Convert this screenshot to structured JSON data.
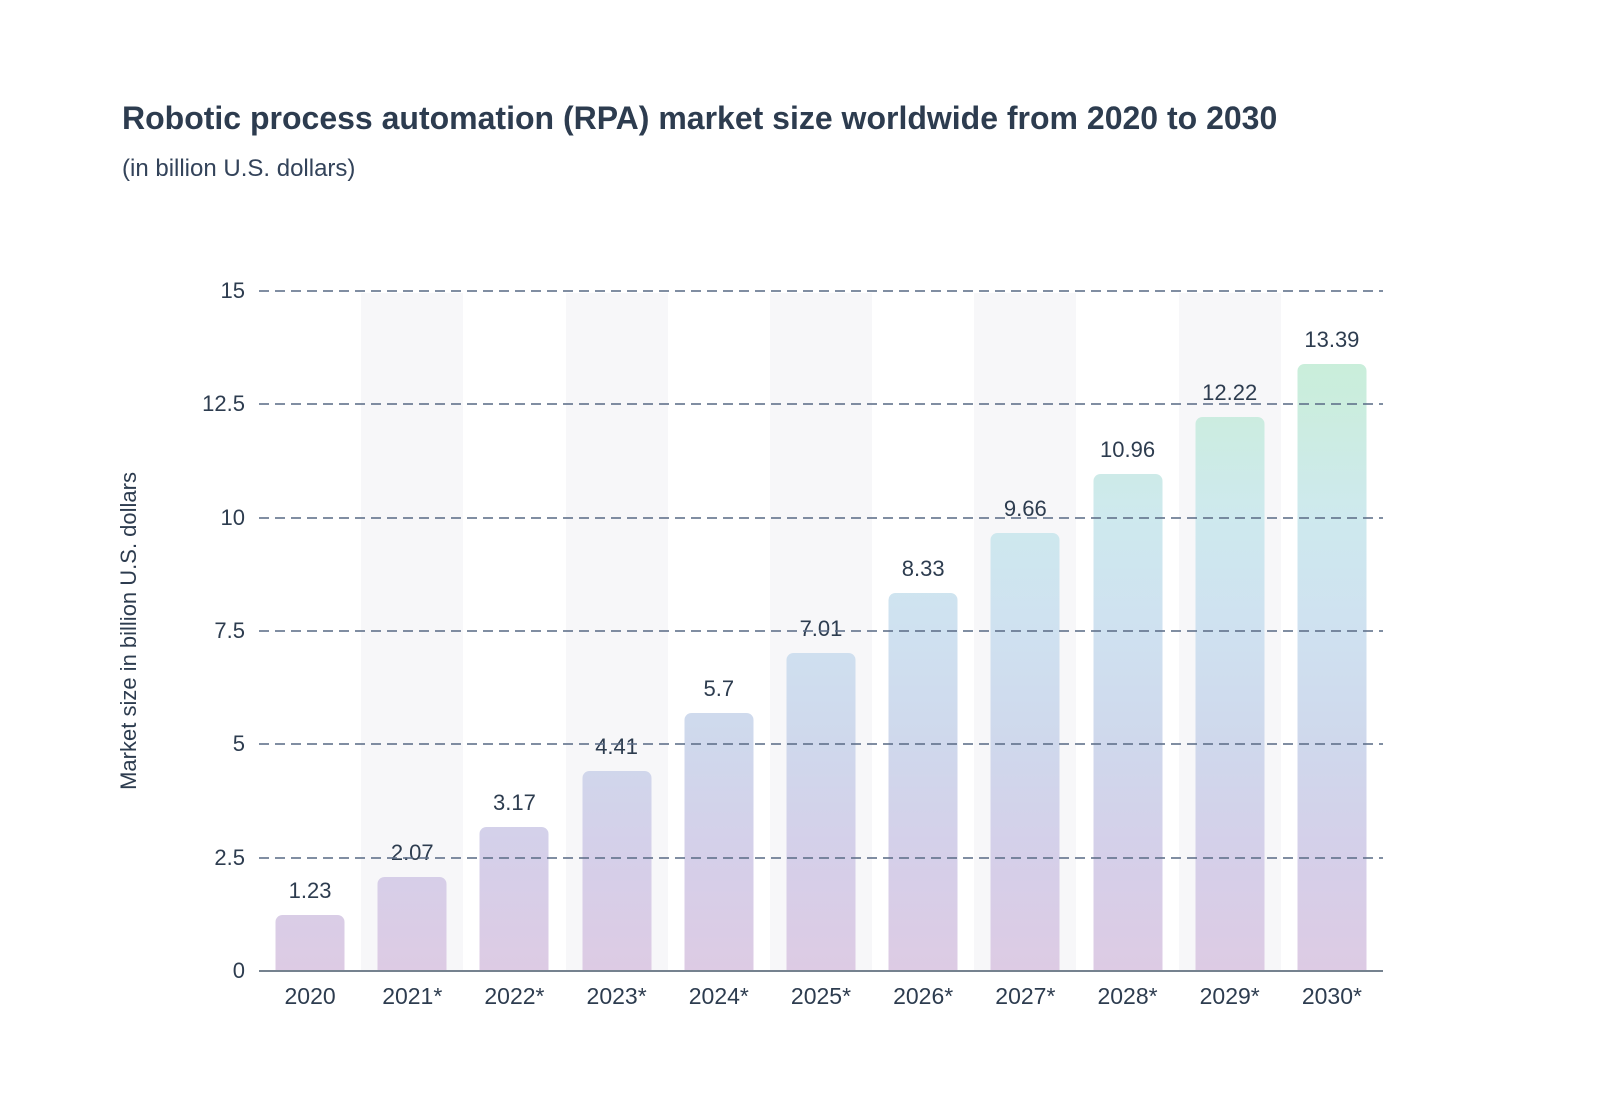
{
  "title": "Robotic process automation (RPA) market size worldwide from 2020 to 2030",
  "subtitle": "(in billion U.S. dollars)",
  "chart_data": {
    "type": "bar",
    "title": "Robotic process automation (RPA) market size worldwide from 2020 to 2030",
    "subtitle": "(in billion U.S. dollars)",
    "categories": [
      "2020",
      "2021*",
      "2022*",
      "2023*",
      "2024*",
      "2025*",
      "2026*",
      "2027*",
      "2028*",
      "2029*",
      "2030*"
    ],
    "values": [
      1.23,
      2.07,
      3.17,
      4.41,
      5.7,
      7.01,
      8.33,
      9.66,
      10.96,
      12.22,
      13.39
    ],
    "value_labels": [
      "1.23",
      "2.07",
      "3.17",
      "4.41",
      "5.7",
      "7.01",
      "8.33",
      "9.66",
      "10.96",
      "12.22",
      "13.39"
    ],
    "xlabel": "",
    "ylabel": "Market size in billion U.S. dollars",
    "ylim": [
      0,
      15
    ],
    "yticks": [
      0,
      2.5,
      5,
      7.5,
      10,
      12.5,
      15
    ],
    "ytick_labels": [
      "0",
      "2.5",
      "5",
      "7.5",
      "10",
      "12.5",
      "15"
    ],
    "grid": "horizontal dashed, drawn over bars",
    "legend": "none",
    "band_columns": [
      1,
      3,
      5,
      7,
      9
    ],
    "colors": {
      "text": "#2d3c4f",
      "gridline": "#5d6e88",
      "axis_line": "#75828f",
      "column_band": "#f7f7f9",
      "bar_gradient_bottom_to_top": [
        "#ddcbe4",
        "#d5cfe9",
        "#cfd8ec",
        "#cfe1f0",
        "#cee9ee",
        "#cbedde",
        "#c6efd4"
      ]
    }
  }
}
